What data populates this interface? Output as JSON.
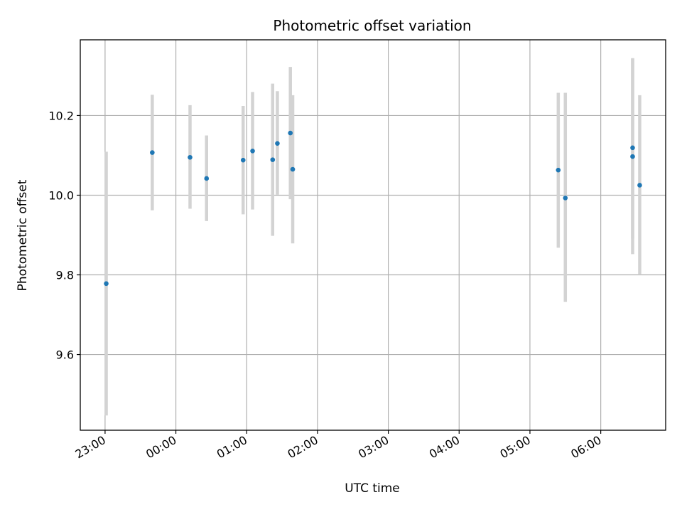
{
  "chart_data": {
    "type": "scatter",
    "title": "Photometric offset variation",
    "xlabel": "UTC time",
    "ylabel": "Photometric offset",
    "x_axis": "time",
    "xlim": [
      "22:39",
      "06:55"
    ],
    "ylim": [
      9.41,
      10.39
    ],
    "xticks": [
      "23:00",
      "00:00",
      "01:00",
      "02:00",
      "03:00",
      "04:00",
      "05:00",
      "06:00"
    ],
    "yticks": [
      9.6,
      9.8,
      10.0,
      10.2
    ],
    "grid": true,
    "legend": "none",
    "point_color": "#1f77b4",
    "errorbar_color": "#d3d3d3",
    "points": [
      {
        "x": "23:01",
        "y": 9.778,
        "err_low": 9.447,
        "err_high": 10.109
      },
      {
        "x": "23:40",
        "y": 10.107,
        "err_low": 9.962,
        "err_high": 10.252
      },
      {
        "x": "00:12",
        "y": 10.095,
        "err_low": 9.966,
        "err_high": 10.226
      },
      {
        "x": "00:26",
        "y": 10.042,
        "err_low": 9.935,
        "err_high": 10.15
      },
      {
        "x": "00:57",
        "y": 10.088,
        "err_low": 9.952,
        "err_high": 10.224
      },
      {
        "x": "01:05",
        "y": 10.111,
        "err_low": 9.964,
        "err_high": 10.259
      },
      {
        "x": "01:22",
        "y": 10.089,
        "err_low": 9.898,
        "err_high": 10.28
      },
      {
        "x": "01:26",
        "y": 10.13,
        "err_low": 10.001,
        "err_high": 10.261
      },
      {
        "x": "01:37",
        "y": 10.156,
        "err_low": 9.99,
        "err_high": 10.322
      },
      {
        "x": "01:39",
        "y": 10.065,
        "err_low": 9.879,
        "err_high": 10.251
      },
      {
        "x": "05:24",
        "y": 10.063,
        "err_low": 9.868,
        "err_high": 10.257
      },
      {
        "x": "05:30",
        "y": 9.993,
        "err_low": 9.732,
        "err_high": 10.257
      },
      {
        "x": "06:27",
        "y": 10.119,
        "err_low": 9.891,
        "err_high": 10.344
      },
      {
        "x": "06:27",
        "y": 10.097,
        "err_low": 9.852,
        "err_high": 10.343
      },
      {
        "x": "06:33",
        "y": 10.025,
        "err_low": 9.8,
        "err_high": 10.251
      }
    ]
  }
}
